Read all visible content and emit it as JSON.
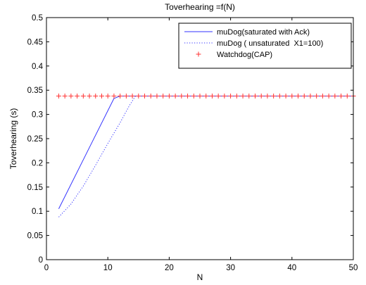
{
  "chart_data": {
    "type": "line",
    "title": "Toverhearing =f(N)",
    "xlabel": "N",
    "ylabel": "Toverhearing (s)",
    "xlim": [
      0,
      50
    ],
    "ylim": [
      0,
      0.5
    ],
    "xticks": [
      "0",
      "10",
      "20",
      "30",
      "40",
      "50"
    ],
    "yticks": [
      "0",
      "0.05",
      "0.1",
      "0.15",
      "0.2",
      "0.25",
      "0.3",
      "0.35",
      "0.4",
      "0.45",
      "0.5"
    ],
    "grid": false,
    "legend_position": "top-right",
    "series": [
      {
        "name": "muDog(saturated with Ack)",
        "style": "solid",
        "color": "#3333ff",
        "x": [
          2,
          11,
          12,
          50
        ],
        "y": [
          0.105,
          0.333,
          0.338,
          0.338
        ]
      },
      {
        "name": "muDog ( unsaturated  X1=100)",
        "style": "dotted",
        "color": "#3333ff",
        "x": [
          2,
          4,
          6,
          8,
          10,
          12,
          13.5,
          14.5,
          50
        ],
        "y": [
          0.088,
          0.115,
          0.152,
          0.195,
          0.24,
          0.283,
          0.318,
          0.338,
          0.338
        ]
      },
      {
        "name": "Watchdog(CAP)",
        "style": "marker-plus",
        "color": "#ff3333",
        "x": [
          2,
          3,
          4,
          5,
          6,
          7,
          8,
          9,
          10,
          11,
          12,
          13,
          14,
          15,
          16,
          17,
          18,
          19,
          20,
          21,
          22,
          23,
          24,
          25,
          26,
          27,
          28,
          29,
          30,
          31,
          32,
          33,
          34,
          35,
          36,
          37,
          38,
          39,
          40,
          41,
          42,
          43,
          44,
          45,
          46,
          47,
          48,
          49,
          50
        ],
        "y": [
          0.338,
          0.338,
          0.338,
          0.338,
          0.338,
          0.338,
          0.338,
          0.338,
          0.338,
          0.338,
          0.338,
          0.338,
          0.338,
          0.338,
          0.338,
          0.338,
          0.338,
          0.338,
          0.338,
          0.338,
          0.338,
          0.338,
          0.338,
          0.338,
          0.338,
          0.338,
          0.338,
          0.338,
          0.338,
          0.338,
          0.338,
          0.338,
          0.338,
          0.338,
          0.338,
          0.338,
          0.338,
          0.338,
          0.338,
          0.338,
          0.338,
          0.338,
          0.338,
          0.338,
          0.338,
          0.338,
          0.338,
          0.338,
          0.338
        ]
      }
    ]
  }
}
